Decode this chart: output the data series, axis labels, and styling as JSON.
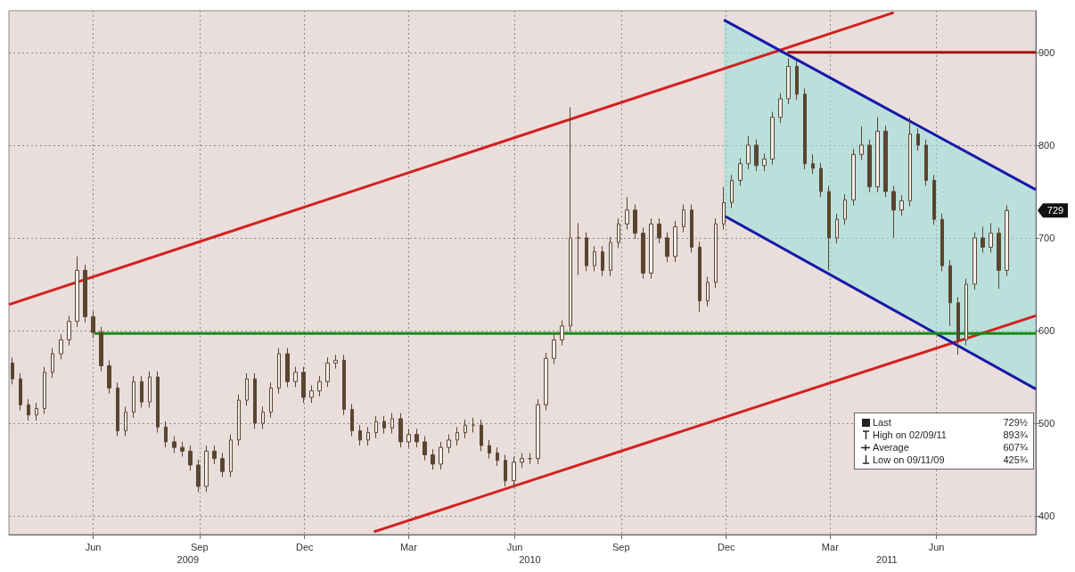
{
  "chart_data": {
    "type": "candlestick",
    "xlim": [
      "2009-04-03",
      "2011-09-09"
    ],
    "ylim": [
      380,
      945
    ],
    "yticks": [
      400,
      500,
      600,
      700,
      800,
      900
    ],
    "xticks": [
      {
        "value": "2009-06-15",
        "label": "Jun"
      },
      {
        "value": "2009-09-15",
        "label": "Sep"
      },
      {
        "value": "2009-12-15",
        "label": "Dec"
      },
      {
        "value": "2010-03-15",
        "label": "Mar"
      },
      {
        "value": "2010-06-15",
        "label": "Jun"
      },
      {
        "value": "2010-09-15",
        "label": "Sep"
      },
      {
        "value": "2010-12-15",
        "label": "Dec"
      },
      {
        "value": "2011-03-15",
        "label": "Mar"
      },
      {
        "value": "2011-06-15",
        "label": "Jun"
      }
    ],
    "x2lim": [
      "2009-04-03",
      "2011-09-09"
    ],
    "x2ticks": [
      {
        "value": "2009-09-05",
        "label": "2009"
      },
      {
        "value": "2010-06-28",
        "label": "2010"
      },
      {
        "value": "2011-05-03",
        "label": "2011"
      }
    ],
    "grid": true,
    "annotations": [
      "Last",
      "729½",
      "High on 02/09/11",
      "893¾",
      "Average",
      "607¾",
      "Low on 09/11/09",
      "425¾",
      "729"
    ],
    "series": [
      {
        "color": "#5a4530",
        "x": [
          "2009-04-06",
          "2009-04-13",
          "2009-04-20",
          "2009-04-27",
          "2009-05-04",
          "2009-05-11",
          "2009-05-18",
          "2009-05-25",
          "2009-06-01",
          "2009-06-08",
          "2009-06-15",
          "2009-06-22",
          "2009-06-29",
          "2009-07-06",
          "2009-07-13",
          "2009-07-20",
          "2009-07-27",
          "2009-08-03",
          "2009-08-10",
          "2009-08-17",
          "2009-08-24",
          "2009-08-31",
          "2009-09-07",
          "2009-09-14",
          "2009-09-21",
          "2009-09-28",
          "2009-10-05",
          "2009-10-12",
          "2009-10-19",
          "2009-10-26",
          "2009-11-02",
          "2009-11-09",
          "2009-11-16",
          "2009-11-23",
          "2009-11-30",
          "2009-12-07",
          "2009-12-14",
          "2009-12-21",
          "2009-12-28",
          "2010-01-04",
          "2010-01-11",
          "2010-01-18",
          "2010-01-25",
          "2010-02-01",
          "2010-02-08",
          "2010-02-15",
          "2010-02-22",
          "2010-03-01",
          "2010-03-08",
          "2010-03-15",
          "2010-03-22",
          "2010-03-29",
          "2010-04-05",
          "2010-04-12",
          "2010-04-19",
          "2010-04-26",
          "2010-05-03",
          "2010-05-10",
          "2010-05-17",
          "2010-05-24",
          "2010-05-31",
          "2010-06-07",
          "2010-06-14",
          "2010-06-21",
          "2010-06-28",
          "2010-07-05",
          "2010-07-12",
          "2010-07-19",
          "2010-07-26",
          "2010-08-02",
          "2010-08-09",
          "2010-08-16",
          "2010-08-23",
          "2010-08-30",
          "2010-09-06",
          "2010-09-13",
          "2010-09-20",
          "2010-09-27",
          "2010-10-04",
          "2010-10-11",
          "2010-10-18",
          "2010-10-25",
          "2010-11-01",
          "2010-11-08",
          "2010-11-15",
          "2010-11-22",
          "2010-11-29",
          "2010-12-06",
          "2010-12-13",
          "2010-12-20",
          "2010-12-27",
          "2011-01-03",
          "2011-01-10",
          "2011-01-17",
          "2011-01-24",
          "2011-01-31",
          "2011-02-07",
          "2011-02-14",
          "2011-02-21",
          "2011-02-28",
          "2011-03-07",
          "2011-03-14",
          "2011-03-21",
          "2011-03-28",
          "2011-04-04",
          "2011-04-11",
          "2011-04-18",
          "2011-04-25",
          "2011-05-02",
          "2011-05-09",
          "2011-05-16",
          "2011-05-23",
          "2011-05-30",
          "2011-06-06",
          "2011-06-13",
          "2011-06-20",
          "2011-06-27",
          "2011-07-04",
          "2011-07-11",
          "2011-07-18",
          "2011-07-25",
          "2011-08-01",
          "2011-08-08",
          "2011-08-15"
        ],
        "ohlc": [
          [
            565,
            571,
            542,
            548
          ],
          [
            548,
            554,
            514,
            520
          ],
          [
            520,
            526,
            503,
            509
          ],
          [
            509,
            522,
            503,
            516
          ],
          [
            516,
            561,
            510,
            555
          ],
          [
            555,
            581,
            549,
            575
          ],
          [
            575,
            596,
            569,
            590
          ],
          [
            590,
            616,
            584,
            610
          ],
          [
            610,
            680,
            604,
            665
          ],
          [
            665,
            671,
            609,
            615
          ],
          [
            615,
            621,
            592,
            598
          ],
          [
            598,
            604,
            556,
            562
          ],
          [
            562,
            568,
            532,
            538
          ],
          [
            538,
            544,
            486,
            492
          ],
          [
            492,
            518,
            486,
            512
          ],
          [
            512,
            551,
            506,
            545
          ],
          [
            545,
            551,
            517,
            523
          ],
          [
            523,
            556,
            517,
            550
          ],
          [
            550,
            556,
            490,
            496
          ],
          [
            496,
            502,
            474,
            480
          ],
          [
            480,
            486,
            468,
            474
          ],
          [
            474,
            480,
            464,
            470
          ],
          [
            470,
            476,
            449,
            455
          ],
          [
            455,
            461,
            425.75,
            432
          ],
          [
            432,
            476,
            426,
            470
          ],
          [
            470,
            476,
            456,
            462
          ],
          [
            462,
            468,
            442,
            448
          ],
          [
            448,
            488,
            442,
            482
          ],
          [
            482,
            531,
            476,
            525
          ],
          [
            525,
            554,
            519,
            548
          ],
          [
            548,
            554,
            494,
            500
          ],
          [
            500,
            518,
            494,
            512
          ],
          [
            512,
            544,
            506,
            538
          ],
          [
            538,
            581,
            532,
            575
          ],
          [
            575,
            581,
            539,
            545
          ],
          [
            545,
            561,
            539,
            555
          ],
          [
            555,
            561,
            522,
            528
          ],
          [
            528,
            541,
            522,
            535
          ],
          [
            535,
            551,
            529,
            545
          ],
          [
            545,
            571,
            539,
            565
          ],
          [
            565,
            574,
            559,
            568
          ],
          [
            568,
            574,
            509,
            515
          ],
          [
            515,
            521,
            486,
            492
          ],
          [
            492,
            498,
            476,
            482
          ],
          [
            482,
            496,
            476,
            490
          ],
          [
            490,
            508,
            484,
            502
          ],
          [
            502,
            508,
            489,
            495
          ],
          [
            495,
            511,
            489,
            505
          ],
          [
            505,
            511,
            474,
            480
          ],
          [
            480,
            494,
            474,
            488
          ],
          [
            488,
            494,
            474,
            480
          ],
          [
            480,
            486,
            460,
            466
          ],
          [
            466,
            472,
            450,
            456
          ],
          [
            456,
            480,
            450,
            474
          ],
          [
            474,
            488,
            468,
            482
          ],
          [
            482,
            496,
            476,
            490
          ],
          [
            490,
            504,
            484,
            498
          ],
          [
            498,
            506,
            490,
            498
          ],
          [
            498,
            504,
            470,
            476
          ],
          [
            476,
            482,
            462,
            468
          ],
          [
            468,
            474,
            454,
            460
          ],
          [
            460,
            466,
            432,
            438
          ],
          [
            438,
            464,
            432,
            458
          ],
          [
            458,
            468,
            452,
            462
          ],
          [
            462,
            468,
            456,
            462
          ],
          [
            462,
            526,
            456,
            520
          ],
          [
            520,
            576,
            514,
            570
          ],
          [
            570,
            596,
            564,
            590
          ],
          [
            590,
            611,
            584,
            605
          ],
          [
            605,
            841,
            599,
            700
          ],
          [
            700,
            716,
            660,
            700
          ],
          [
            700,
            706,
            664,
            670
          ],
          [
            670,
            691,
            664,
            685
          ],
          [
            685,
            691,
            659,
            665
          ],
          [
            665,
            701,
            659,
            695
          ],
          [
            695,
            721,
            689,
            715
          ],
          [
            715,
            744,
            709,
            730
          ],
          [
            730,
            736,
            699,
            705
          ],
          [
            705,
            711,
            656,
            662
          ],
          [
            662,
            721,
            656,
            715
          ],
          [
            715,
            721,
            694,
            700
          ],
          [
            700,
            706,
            674,
            680
          ],
          [
            680,
            718,
            674,
            712
          ],
          [
            712,
            736,
            706,
            730
          ],
          [
            730,
            736,
            684,
            690
          ],
          [
            690,
            696,
            620,
            632
          ],
          [
            632,
            658,
            626,
            652
          ],
          [
            652,
            721,
            646,
            715
          ],
          [
            715,
            755,
            709,
            738
          ],
          [
            738,
            768,
            732,
            762
          ],
          [
            762,
            786,
            756,
            780
          ],
          [
            780,
            810,
            774,
            800
          ],
          [
            800,
            806,
            772,
            778
          ],
          [
            778,
            791,
            772,
            785
          ],
          [
            785,
            836,
            779,
            830
          ],
          [
            830,
            856,
            824,
            850
          ],
          [
            850,
            893.75,
            844,
            885
          ],
          [
            885,
            891,
            849,
            855
          ],
          [
            855,
            861,
            774,
            780
          ],
          [
            780,
            790,
            769,
            775
          ],
          [
            775,
            781,
            744,
            750
          ],
          [
            750,
            756,
            665,
            700
          ],
          [
            700,
            726,
            694,
            720
          ],
          [
            720,
            747,
            714,
            741
          ],
          [
            741,
            796,
            735,
            790
          ],
          [
            790,
            820,
            784,
            800
          ],
          [
            800,
            806,
            749,
            755
          ],
          [
            755,
            830,
            749,
            815
          ],
          [
            815,
            821,
            744,
            750
          ],
          [
            750,
            756,
            700,
            730
          ],
          [
            730,
            746,
            724,
            740
          ],
          [
            740,
            830,
            734,
            812
          ],
          [
            812,
            818,
            794,
            800
          ],
          [
            800,
            806,
            756,
            762
          ],
          [
            762,
            768,
            714,
            720
          ],
          [
            720,
            726,
            664,
            670
          ],
          [
            670,
            676,
            605,
            630
          ],
          [
            630,
            636,
            574,
            590
          ],
          [
            590,
            656,
            584,
            650
          ],
          [
            650,
            706,
            644,
            700
          ],
          [
            700,
            712,
            684,
            690
          ],
          [
            690,
            716,
            684,
            705
          ],
          [
            705,
            711,
            645,
            665
          ],
          [
            665,
            735,
            659,
            729.5
          ]
        ]
      },
      {
        "type": "line",
        "color": "#d42020",
        "x": [
          "2009-04-03",
          "2011-05-09"
        ],
        "values": [
          628,
          943
        ]
      },
      {
        "type": "line",
        "color": "#d42020",
        "x": [
          "2010-02-13",
          "2011-09-09"
        ],
        "values": [
          383,
          616
        ]
      },
      {
        "type": "line",
        "color": "#1818a8",
        "x": [
          "2010-12-13",
          "2011-09-09"
        ],
        "values": [
          935,
          752
        ],
        "lower": [
          724,
          537
        ],
        "upper": [
          935,
          752
        ]
      },
      {
        "type": "line",
        "color": "#1818a8",
        "x": [
          "2010-12-13",
          "2011-09-09"
        ],
        "values": [
          724,
          537
        ]
      },
      {
        "type": "line",
        "color": "#a01010",
        "x": [
          "2011-02-06",
          "2011-09-09"
        ],
        "values": [
          900,
          900
        ]
      },
      {
        "type": "line",
        "color": "#1a8a1a",
        "x": [
          "2009-06-16",
          "2011-09-09"
        ],
        "values": [
          597,
          597
        ]
      }
    ]
  }
}
